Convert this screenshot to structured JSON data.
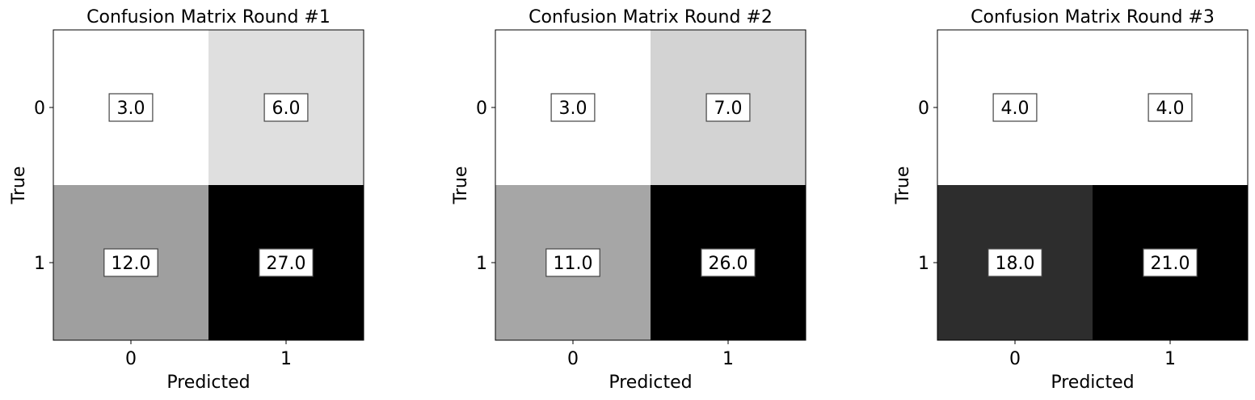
{
  "chart_data": [
    {
      "type": "heatmap",
      "title": "Confusion Matrix Round #1",
      "xlabel": "Predicted",
      "ylabel": "True",
      "x_categories": [
        "0",
        "1"
      ],
      "y_categories": [
        "0",
        "1"
      ],
      "values": [
        [
          3.0,
          6.0
        ],
        [
          12.0,
          27.0
        ]
      ],
      "value_labels": [
        [
          "3.0",
          "6.0"
        ],
        [
          "12.0",
          "27.0"
        ]
      ],
      "colormap": "gray_r",
      "grid": false
    },
    {
      "type": "heatmap",
      "title": "Confusion Matrix Round #2",
      "xlabel": "Predicted",
      "ylabel": "True",
      "x_categories": [
        "0",
        "1"
      ],
      "y_categories": [
        "0",
        "1"
      ],
      "values": [
        [
          3.0,
          7.0
        ],
        [
          11.0,
          26.0
        ]
      ],
      "value_labels": [
        [
          "3.0",
          "7.0"
        ],
        [
          "11.0",
          "26.0"
        ]
      ],
      "colormap": "gray_r",
      "grid": false
    },
    {
      "type": "heatmap",
      "title": "Confusion Matrix Round #3",
      "xlabel": "Predicted",
      "ylabel": "True",
      "x_categories": [
        "0",
        "1"
      ],
      "y_categories": [
        "0",
        "1"
      ],
      "values": [
        [
          4.0,
          4.0
        ],
        [
          18.0,
          21.0
        ]
      ],
      "value_labels": [
        [
          "4.0",
          "4.0"
        ],
        [
          "18.0",
          "21.0"
        ]
      ],
      "colormap": "gray_r",
      "grid": false
    }
  ]
}
